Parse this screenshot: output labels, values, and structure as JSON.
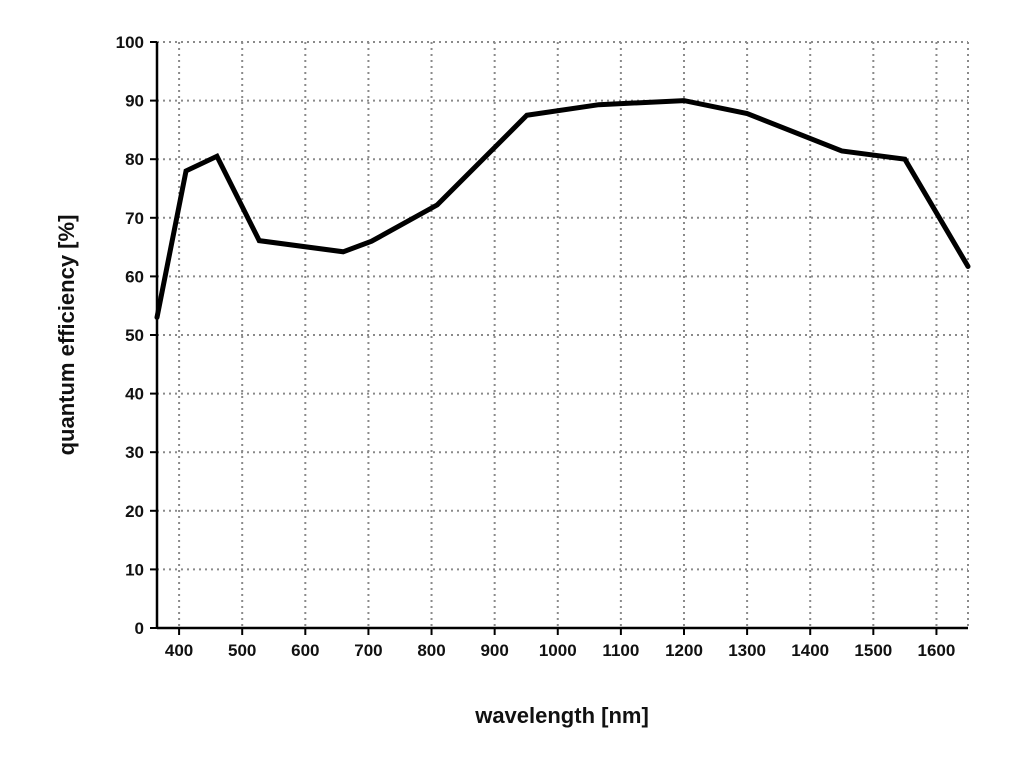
{
  "chart_data": {
    "type": "line",
    "title": "",
    "xlabel": "wavelength [nm]",
    "ylabel": "quantum efficiency [%]",
    "xlim": [
      365,
      1650
    ],
    "ylim": [
      0,
      100
    ],
    "grid": true,
    "x_ticks": [
      400,
      500,
      600,
      700,
      800,
      900,
      1000,
      1100,
      1200,
      1300,
      1400,
      1500,
      1600
    ],
    "y_ticks": [
      0,
      10,
      20,
      30,
      40,
      50,
      60,
      70,
      80,
      90,
      100
    ],
    "series": [
      {
        "name": "quantum efficiency",
        "color": "#000000",
        "x": [
          365,
          411,
          460,
          527,
          660,
          705,
          809,
          951,
          1065,
          1200,
          1300,
          1450,
          1550,
          1650
        ],
        "y": [
          53,
          78,
          80.5,
          66.1,
          64.2,
          66,
          72.2,
          87.5,
          89.3,
          90,
          87.8,
          81.4,
          80,
          61.7
        ]
      }
    ]
  }
}
